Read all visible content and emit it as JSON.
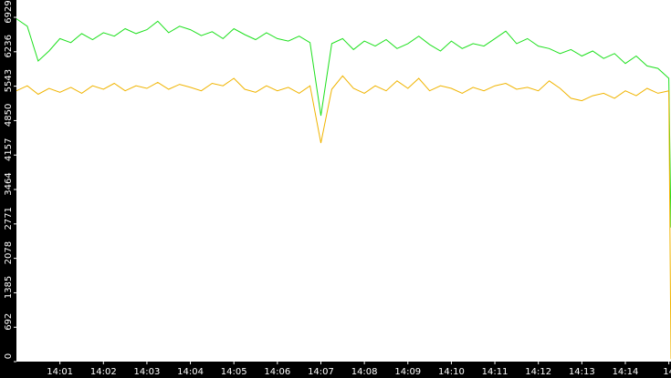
{
  "chart_data": {
    "type": "line",
    "x": [
      840.0,
      840.25,
      840.5,
      840.75,
      841.0,
      841.25,
      841.5,
      841.75,
      842.0,
      842.25,
      842.5,
      842.75,
      843.0,
      843.25,
      843.5,
      843.75,
      844.0,
      844.25,
      844.5,
      844.75,
      845.0,
      845.25,
      845.5,
      845.75,
      846.0,
      846.25,
      846.5,
      846.75,
      847.0,
      847.25,
      847.5,
      847.75,
      848.0,
      848.25,
      848.5,
      848.75,
      849.0,
      849.25,
      849.5,
      849.75,
      850.0,
      850.25,
      850.5,
      850.75,
      851.0,
      851.25,
      851.5,
      851.75,
      852.0,
      852.25,
      852.5,
      852.75,
      853.0,
      853.25,
      853.5,
      853.75,
      854.0,
      854.25,
      854.5,
      854.75,
      855.0,
      855.05
    ],
    "series": [
      {
        "color": "#1ee01e",
        "values": [
          6900,
          6750,
          6050,
          6250,
          6500,
          6420,
          6600,
          6480,
          6620,
          6550,
          6700,
          6600,
          6680,
          6850,
          6620,
          6750,
          6680,
          6560,
          6640,
          6500,
          6700,
          6580,
          6480,
          6620,
          6500,
          6450,
          6550,
          6420,
          4950,
          6400,
          6500,
          6280,
          6450,
          6350,
          6480,
          6300,
          6400,
          6550,
          6380,
          6250,
          6450,
          6300,
          6400,
          6350,
          6500,
          6650,
          6400,
          6500,
          6350,
          6300,
          6200,
          6280,
          6150,
          6250,
          6100,
          6200,
          6000,
          6150,
          5950,
          5900,
          5700,
          2700
        ]
      },
      {
        "color": "#f0b400",
        "values": [
          5450,
          5550,
          5380,
          5500,
          5420,
          5520,
          5400,
          5550,
          5480,
          5600,
          5450,
          5550,
          5500,
          5620,
          5480,
          5580,
          5520,
          5450,
          5600,
          5550,
          5700,
          5480,
          5420,
          5550,
          5450,
          5520,
          5400,
          5550,
          4400,
          5480,
          5750,
          5500,
          5400,
          5550,
          5450,
          5650,
          5500,
          5700,
          5450,
          5550,
          5500,
          5400,
          5520,
          5450,
          5550,
          5600,
          5480,
          5520,
          5450,
          5650,
          5500,
          5300,
          5250,
          5350,
          5400,
          5300,
          5450,
          5350,
          5500,
          5400,
          5450,
          50
        ]
      }
    ],
    "xlim": [
      840.0,
      855.05
    ],
    "xticks": [
      {
        "value": 841,
        "label": "14:01"
      },
      {
        "value": 842,
        "label": "14:02"
      },
      {
        "value": 843,
        "label": "14:03"
      },
      {
        "value": 844,
        "label": "14:04"
      },
      {
        "value": 845,
        "label": "14:05"
      },
      {
        "value": 846,
        "label": "14:06"
      },
      {
        "value": 847,
        "label": "14:07"
      },
      {
        "value": 848,
        "label": "14:08"
      },
      {
        "value": 849,
        "label": "14:09"
      },
      {
        "value": 850,
        "label": "14:10"
      },
      {
        "value": 851,
        "label": "14:11"
      },
      {
        "value": 852,
        "label": "14:12"
      },
      {
        "value": 853,
        "label": "14:13"
      },
      {
        "value": 854,
        "label": "14:14"
      },
      {
        "value": 855,
        "label": "14"
      }
    ],
    "ylim": [
      0,
      6929
    ],
    "yticks": [
      0,
      692,
      1385,
      2078,
      2771,
      3464,
      4157,
      4850,
      5543,
      6236,
      6929
    ]
  }
}
